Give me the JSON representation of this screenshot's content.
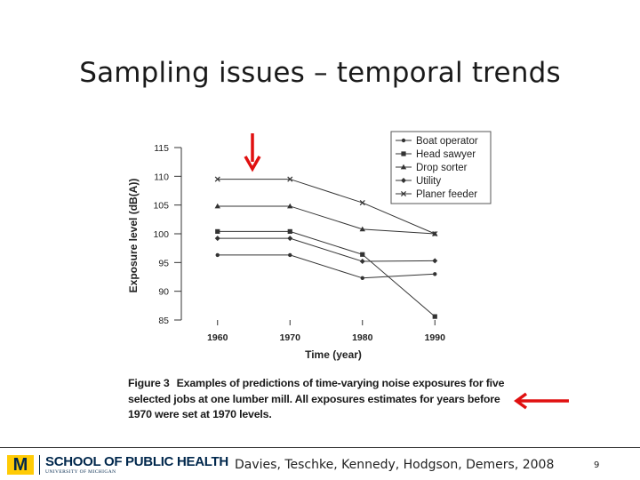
{
  "slide": {
    "title": "Sampling issues – temporal trends",
    "caption_label": "Figure 3",
    "caption_text": "Examples of predictions of time-varying noise exposures for five selected jobs at one lumber mill. All exposures estimates for years before 1970 were set at 1970 levels.",
    "footer": {
      "logo_mark": "M",
      "logo_school": "SCHOOL OF PUBLIC HEALTH",
      "logo_university": "UNIVERSITY OF MICHIGAN",
      "citation": "Davies, Teschke, Kennedy, Hodgson, Demers, 2008",
      "page_number": "9"
    },
    "colors": {
      "arrow": "#e01010",
      "line": "#333333",
      "logo_blue": "#00274c",
      "logo_maize": "#ffcb05"
    }
  },
  "chart_data": {
    "type": "line",
    "title": "",
    "xlabel": "Time (year)",
    "ylabel": "Exposure level (dB(A))",
    "x": [
      1960,
      1970,
      1980,
      1990
    ],
    "x_tick_labels": [
      "1960",
      "1970",
      "1980",
      "1990"
    ],
    "ylim": [
      85,
      115
    ],
    "y_ticks": [
      85,
      90,
      95,
      100,
      105,
      110,
      115
    ],
    "grid": false,
    "legend_position": "top-right",
    "series": [
      {
        "name": "Boat operator",
        "marker": "dot",
        "values": [
          96.3,
          96.3,
          92.3,
          93.0
        ]
      },
      {
        "name": "Head sawyer",
        "marker": "square",
        "values": [
          100.4,
          100.4,
          96.4,
          85.6
        ]
      },
      {
        "name": "Drop sorter",
        "marker": "triangle",
        "values": [
          104.8,
          104.8,
          100.8,
          100.0
        ]
      },
      {
        "name": "Utility",
        "marker": "diamond",
        "values": [
          99.2,
          99.2,
          95.2,
          95.3
        ]
      },
      {
        "name": "Planer feeder",
        "marker": "x",
        "values": [
          109.5,
          109.5,
          105.4,
          100.0
        ]
      }
    ]
  }
}
